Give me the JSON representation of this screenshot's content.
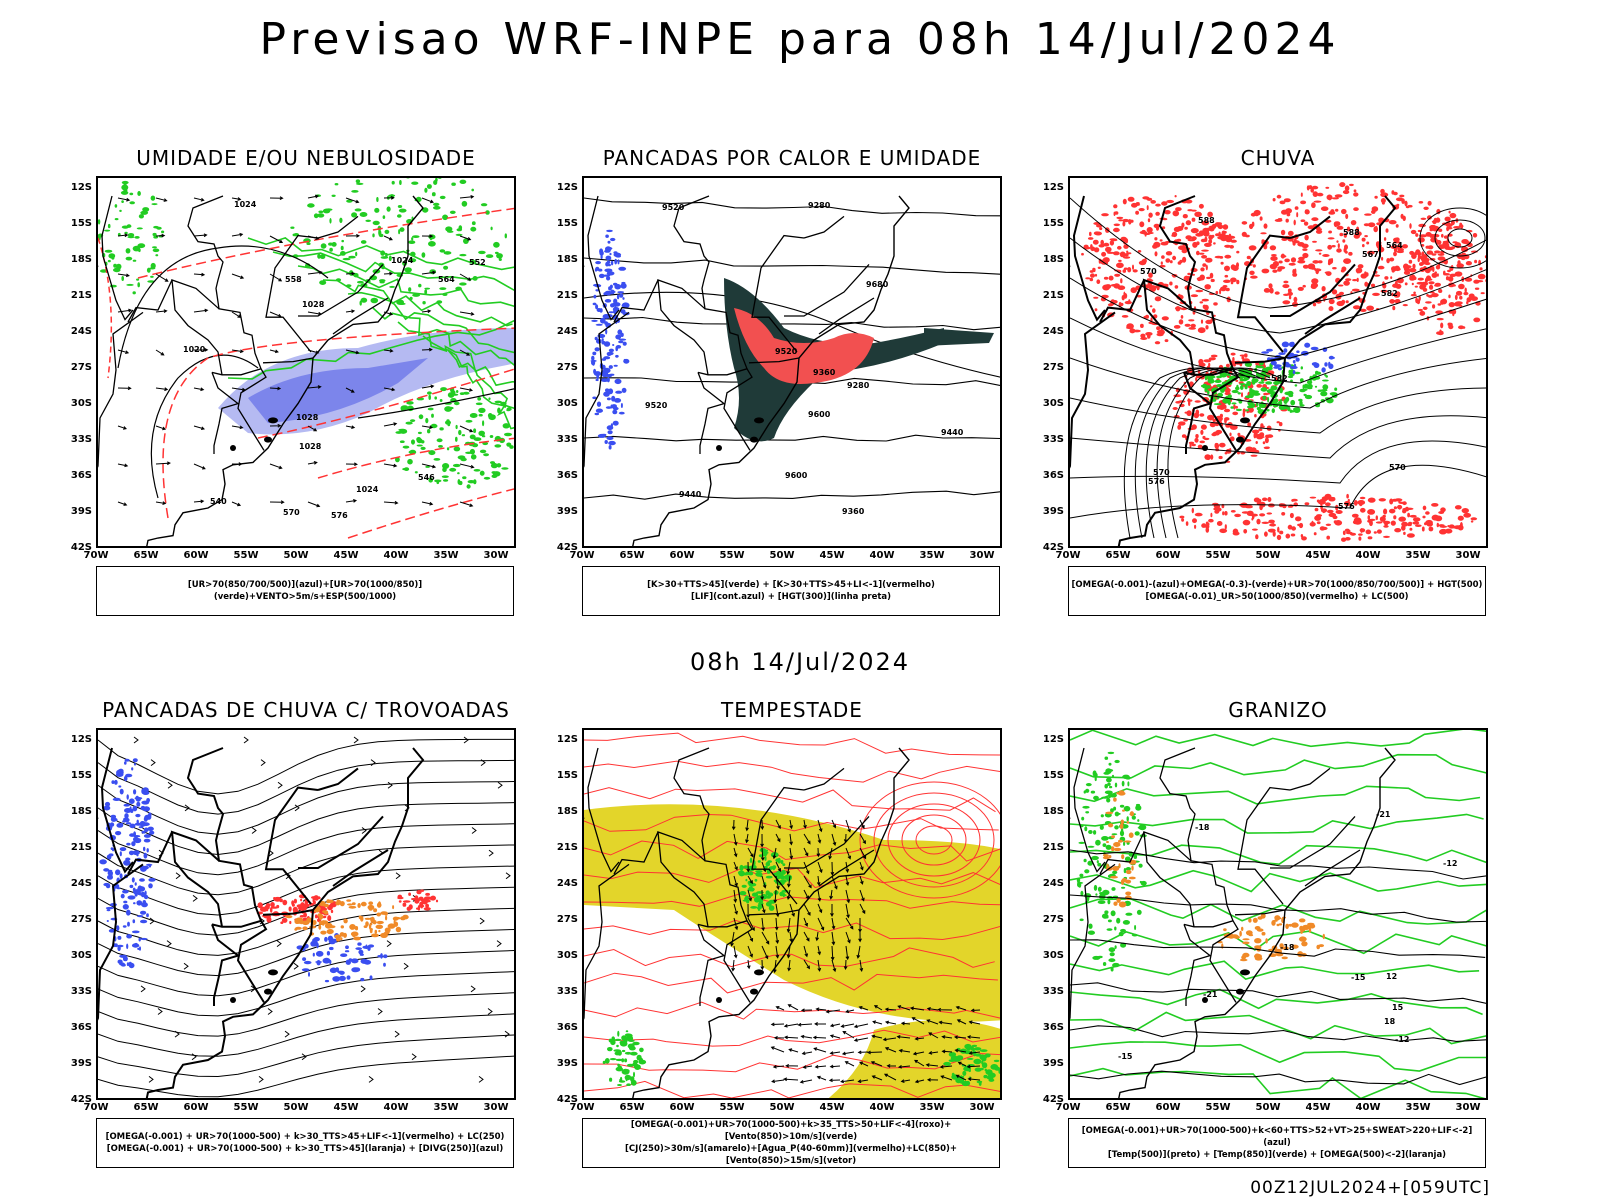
{
  "header": {
    "title": "Previsao WRF-INPE  para 08h 14/Jul/2024",
    "mid_title": "08h 14/Jul/2024",
    "footer": "00Z12JUL2024+[059UTC]"
  },
  "axes": {
    "lat_labels": [
      "12S",
      "15S",
      "18S",
      "21S",
      "24S",
      "27S",
      "30S",
      "33S",
      "36S",
      "39S",
      "42S"
    ],
    "lon_labels": [
      "70W",
      "65W",
      "60W",
      "55W",
      "50W",
      "45W",
      "40W",
      "35W",
      "30W"
    ]
  },
  "colors": {
    "blue": "#3a4ef0",
    "green": "#22cc22",
    "red": "#ff3333",
    "dark_teal": "#1f3a38",
    "salmon": "#f25050",
    "yellow": "#e3d52a",
    "orange": "#f08a28",
    "lavender": "#a8aef0"
  },
  "panels": [
    {
      "id": "umidade",
      "title": "UMIDADE E/OU NEBULOSIDADE",
      "legend": [
        "[UR>70(850/700/500)](azul)+[UR>70(1000/850)](verde)+VENTO>5m/s+ESP(500/1000)"
      ],
      "contour_labels": [
        "1020",
        "1024",
        "1028",
        "1024",
        "1028",
        "552",
        "558",
        "564",
        "570",
        "576",
        "546",
        "540",
        "1028",
        "1024"
      ]
    },
    {
      "id": "pancadas-calor",
      "title": "PANCADAS POR CALOR E UMIDADE",
      "legend": [
        "[K>30+TTS>45](verde) + [K>30+TTS>45+LI<-1](vermelho)",
        "[LIF](cont.azul) + [HGT(300)](linha preta)"
      ],
      "contour_labels": [
        "9680",
        "9600",
        "9520",
        "9440",
        "9360",
        "9280",
        "9520",
        "9440",
        "9360",
        "9280",
        "9600",
        "9520"
      ]
    },
    {
      "id": "chuva",
      "title": "CHUVA",
      "legend": [
        "[OMEGA(-0.001)-(azul)+OMEGA(-0.3)-(verde)+UR>70(1000/850/700/500)] + HGT(500)",
        "[OMEGA(-0.01)_UR>50(1000/850)(vermelho) + LC(500)"
      ],
      "contour_labels": [
        "588",
        "582",
        "576",
        "570",
        "564",
        "576",
        "570",
        "582",
        "588",
        "567",
        "570"
      ]
    },
    {
      "id": "pancadas-trovoadas",
      "title": "PANCADAS DE CHUVA C/ TROVOADAS",
      "legend": [
        "[OMEGA(-0.001) + UR>70(1000-500) + k>30_TTS>45+LIF<-1](vermelho) + LC(250)",
        "[OMEGA(-0.001) + UR>70(1000-500) + k>30_TTS>45](laranja) + [DIVG(250)](azul)"
      ],
      "contour_labels": []
    },
    {
      "id": "tempestade",
      "title": "TEMPESTADE",
      "legend": [
        "[OMEGA(-0.001)+UR>70(1000-500)+k>35_TTS>50+LIF<-4](roxo)+[Vento(850)>10m/s](verde)",
        "[CJ(250)>30m/s](amarelo)+[Agua_P(40-60mm)](vermelho)+LC(850)+[Vento(850)>15m/s](vetor)"
      ],
      "contour_labels": []
    },
    {
      "id": "granizo",
      "title": "GRANIZO",
      "legend": [
        "[OMEGA(-0.001)+UR>70(1000-500)+k<60+TTS>52+VT>25+SWEAT>220+LIF<-2](azul)",
        "[Temp(500)](preto) + [Temp(850)](verde) + [OMEGA(500)<-2](laranja)"
      ],
      "contour_labels": [
        "-12",
        "-15",
        "-18",
        "-21",
        "-12",
        "-15",
        "-18",
        "-21",
        "12",
        "15",
        "18"
      ]
    }
  ]
}
